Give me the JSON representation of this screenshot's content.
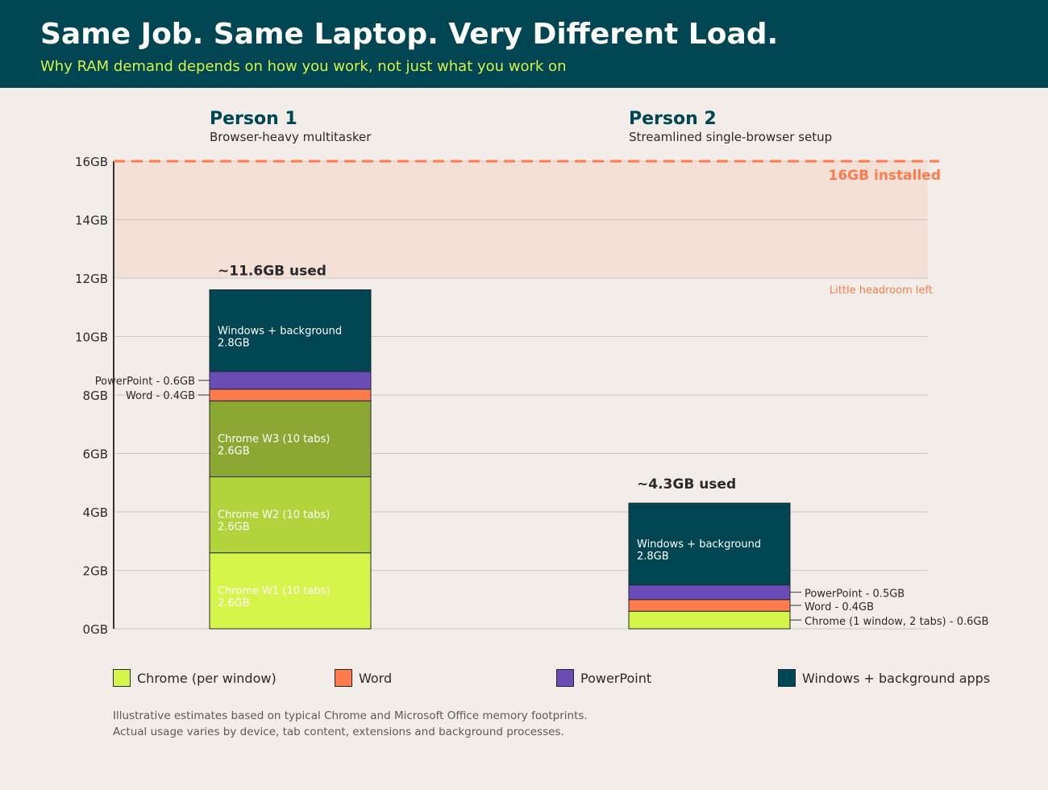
{
  "header": {
    "title": "Same Job. Same Laptop. Very Different Load.",
    "subtitle": "Why RAM demand depends on how you work, not just what you work on"
  },
  "chart_data": {
    "type": "bar",
    "stacked": true,
    "y_ticks": [
      "0GB",
      "2GB",
      "4GB",
      "6GB",
      "8GB",
      "10GB",
      "12GB",
      "14GB",
      "16GB"
    ],
    "ylim": [
      0,
      16
    ],
    "grid": true,
    "capacity": {
      "value": 16,
      "label": "16GB installed",
      "color": "#ff7a4c"
    },
    "headroom_zone": {
      "from": 12,
      "to": 16,
      "label": "Little headroom left"
    },
    "people": [
      {
        "name": "Person 1",
        "description": "Browser-heavy multitasker",
        "total_label": "~11.6GB used",
        "total": 11.6,
        "segments": [
          {
            "category": "chrome",
            "value": 2.6,
            "color": "#d6f54a",
            "name": "Chrome W1 (10 tabs)",
            "value_label": "2.6GB",
            "label_pos": "inside"
          },
          {
            "category": "chrome",
            "value": 2.6,
            "color": "#b1d33c",
            "name": "Chrome W2 (10 tabs)",
            "value_label": "2.6GB",
            "label_pos": "inside"
          },
          {
            "category": "chrome",
            "value": 2.6,
            "color": "#8ba932",
            "name": "Chrome W3 (10 tabs)",
            "value_label": "2.6GB",
            "label_pos": "inside"
          },
          {
            "category": "word",
            "value": 0.4,
            "color": "#ff7a4c",
            "callout": "Word - 0.4GB",
            "label_pos": "left"
          },
          {
            "category": "powerpoint",
            "value": 0.6,
            "color": "#6b4bb5",
            "callout": "PowerPoint - 0.6GB",
            "label_pos": "left"
          },
          {
            "category": "windows",
            "value": 2.8,
            "color": "#004552",
            "name": "Windows + background",
            "value_label": "2.8GB",
            "label_pos": "inside"
          }
        ]
      },
      {
        "name": "Person 2",
        "description": "Streamlined single-browser setup",
        "total_label": "~4.3GB used",
        "total": 4.3,
        "segments": [
          {
            "category": "chrome",
            "value": 0.6,
            "color": "#d6f54a",
            "callout": "Chrome (1 window, 2 tabs) - 0.6GB",
            "label_pos": "right"
          },
          {
            "category": "word",
            "value": 0.4,
            "color": "#ff7a4c",
            "callout": "Word - 0.4GB",
            "label_pos": "right"
          },
          {
            "category": "powerpoint",
            "value": 0.5,
            "color": "#6b4bb5",
            "callout": "PowerPoint - 0.5GB",
            "label_pos": "right"
          },
          {
            "category": "windows",
            "value": 2.8,
            "color": "#004552",
            "name": "Windows + background",
            "value_label": "2.8GB",
            "label_pos": "inside"
          }
        ]
      }
    ],
    "legend": [
      {
        "label": "Chrome (per window)",
        "color": "#d6f54a"
      },
      {
        "label": "Word",
        "color": "#ff7a4c"
      },
      {
        "label": "PowerPoint",
        "color": "#6b4bb5"
      },
      {
        "label": "Windows + background apps",
        "color": "#004552"
      }
    ]
  },
  "footnote": {
    "line1": "Illustrative estimates based on typical Chrome and Microsoft Office memory footprints.",
    "line2": "Actual usage varies by device, tab content, extensions and background processes."
  }
}
